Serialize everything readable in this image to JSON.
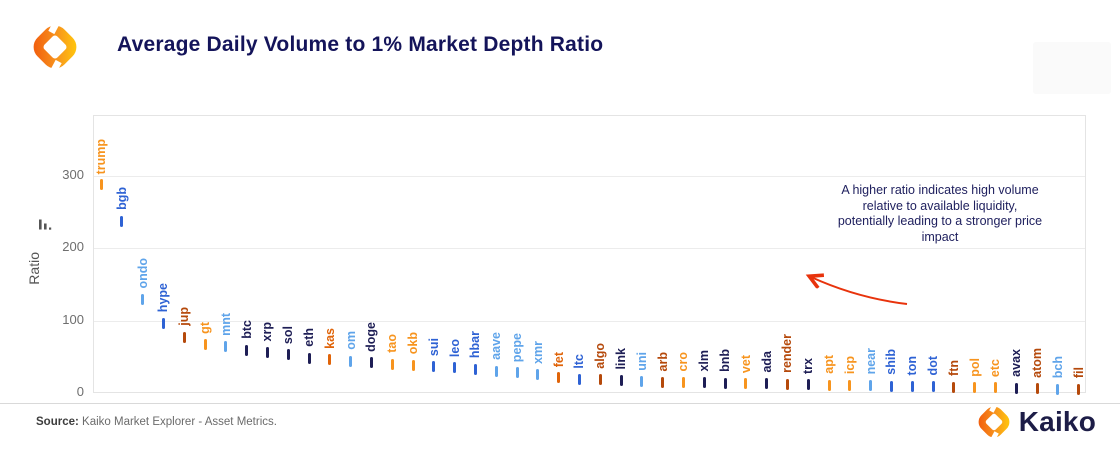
{
  "header": {
    "title": "Average Daily Volume to 1% Market Depth Ratio"
  },
  "chart_data": {
    "type": "bar",
    "title": "Average Daily Volume to 1% Market Depth Ratio",
    "xlabel": "",
    "ylabel": "Ratio",
    "yticks": [
      0,
      100,
      200,
      300
    ],
    "ylim": [
      0,
      380
    ],
    "grid": "horizontal",
    "legend_position": "none",
    "marker_style": "vertical-dash-with-rotated-label",
    "categories": [
      "trump",
      "bgb",
      "ondo",
      "hype",
      "jup",
      "gt",
      "mnt",
      "btc",
      "xrp",
      "sol",
      "eth",
      "kas",
      "om",
      "doge",
      "tao",
      "okb",
      "sui",
      "leo",
      "hbar",
      "aave",
      "pepe",
      "xmr",
      "fet",
      "ltc",
      "algo",
      "link",
      "uni",
      "arb",
      "cro",
      "xlm",
      "bnb",
      "vet",
      "ada",
      "render",
      "trx",
      "apt",
      "icp",
      "near",
      "shib",
      "ton",
      "dot",
      "ftn",
      "pol",
      "etc",
      "avax",
      "atom",
      "bch",
      "fil"
    ],
    "values": [
      287,
      237,
      129,
      96,
      77,
      67,
      64,
      59,
      56,
      53,
      48,
      46,
      44,
      42,
      40,
      38,
      36,
      35,
      33,
      30,
      28,
      25,
      21,
      19,
      18,
      17,
      16,
      15,
      14.5,
      14,
      13.5,
      13,
      12.5,
      12,
      11.5,
      11,
      10.5,
      10,
      9.5,
      9,
      8.5,
      8,
      7.5,
      7,
      6.5,
      6,
      5.5,
      5
    ],
    "colors": [
      "#F7941E",
      "#2E62D4",
      "#5FA4EA",
      "#2E62D4",
      "#B5490B",
      "#F7941E",
      "#5FA4EA",
      "#1E1E55",
      "#1E1E55",
      "#1E1E55",
      "#1E1E55",
      "#E06409",
      "#5FA4EA",
      "#1E1E55",
      "#F7941E",
      "#F7941E",
      "#2E62D4",
      "#2E62D4",
      "#2E62D4",
      "#5FA4EA",
      "#5FA4EA",
      "#5FA4EA",
      "#E06409",
      "#2E62D4",
      "#B5490B",
      "#1E1E55",
      "#5FA4EA",
      "#B5490B",
      "#F7941E",
      "#1E1E55",
      "#1E1E55",
      "#F7941E",
      "#1E1E55",
      "#B5490B",
      "#1E1E55",
      "#F7941E",
      "#F7941E",
      "#5FA4EA",
      "#2E62D4",
      "#2E62D4",
      "#2E62D4",
      "#B5490B",
      "#F7941E",
      "#F7941E",
      "#1E1E55",
      "#B5490B",
      "#5FA4EA",
      "#B5490B"
    ],
    "annotation": "A higher ratio indicates high volume relative to available liquidity, potentially leading to a stronger price impact",
    "annotation_color": "#20215F",
    "arrow_color": "#E8330C"
  },
  "palette": {
    "navy": "#1E1E55",
    "royal_blue": "#2E62D4",
    "light_blue": "#5FA4EA",
    "orange": "#F7941E",
    "red_orange": "#E06409",
    "rust": "#B5490B",
    "brand_orange": "#F7941E",
    "title_navy": "#14145A"
  },
  "footer": {
    "source_label": "Source:",
    "source_text": " Kaiko Market Explorer - Asset Metrics."
  },
  "branding": {
    "name": "Kaiko"
  }
}
